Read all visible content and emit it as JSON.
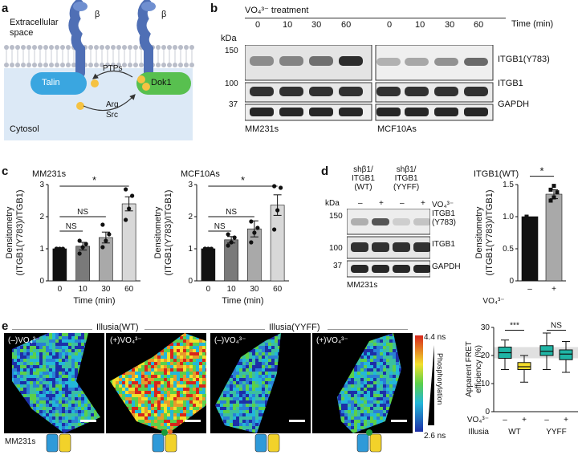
{
  "panels": {
    "a": "a",
    "b": "b",
    "c": "c",
    "d": "d",
    "e": "e"
  },
  "panel_a": {
    "extracellular": "Extracellular\nspace",
    "cytosol": "Cytosol",
    "beta1": "β",
    "beta2": "β",
    "talin": "Talin",
    "dok1": "Dok1",
    "ptps": "PTPs",
    "arg": "Arg",
    "src": "Src",
    "colors": {
      "talin": "#3aa6e0",
      "dok1": "#58c04f",
      "membrane": "#c9ccd6",
      "cytosol": "#dce9f6",
      "integrin": "#4f6fb5",
      "phospho": "#f5c242"
    }
  },
  "panel_b": {
    "treatment": "VO₄³⁻ treatment",
    "kda": "kDa",
    "time_label": "Time (min)",
    "times_left": [
      "0",
      "10",
      "30",
      "60"
    ],
    "times_right": [
      "0",
      "10",
      "30",
      "60"
    ],
    "markers": [
      "150",
      "100",
      "37"
    ],
    "bands": [
      "ITGB1(Y783)",
      "ITGB1",
      "GAPDH"
    ],
    "cell_left": "MM231s",
    "cell_right": "MCF10As"
  },
  "panel_c": {
    "ylabel": "Densitometry\n(ITGB1(Y783)/ITGB1)",
    "xlabel": "Time (min)",
    "ns": "NS",
    "star": "*"
  },
  "chart_data": [
    {
      "type": "bar",
      "title": "MM231s",
      "categories": [
        "0",
        "10",
        "30",
        "60"
      ],
      "values": [
        1.0,
        1.08,
        1.35,
        2.4
      ],
      "errors": [
        0,
        0.12,
        0.17,
        0.22
      ],
      "points": [
        [
          1,
          1,
          1,
          1
        ],
        [
          0.85,
          1.05,
          1.15,
          1.25
        ],
        [
          1.05,
          1.25,
          1.45,
          1.75
        ],
        [
          1.9,
          2.25,
          2.65,
          2.85
        ]
      ],
      "colors": [
        "#111111",
        "#7a7a7a",
        "#a9a9a9",
        "#d8d8d8"
      ],
      "xlabel": "Time (min)",
      "ylabel": "Densitometry (ITGB1(Y783)/ITGB1)",
      "ylim": [
        0,
        3
      ],
      "yticks": [
        "0",
        "1",
        "2",
        "3"
      ],
      "significance": [
        {
          "from": "0",
          "to": "10",
          "label": "NS"
        },
        {
          "from": "0",
          "to": "30",
          "label": "NS"
        },
        {
          "from": "0",
          "to": "60",
          "label": "*"
        }
      ]
    },
    {
      "type": "bar",
      "title": "MCF10As",
      "categories": [
        "0",
        "10",
        "30",
        "60"
      ],
      "values": [
        1.0,
        1.28,
        1.62,
        2.36
      ],
      "errors": [
        0,
        0.1,
        0.25,
        0.32
      ],
      "points": [
        [
          1,
          1,
          1,
          1
        ],
        [
          1.1,
          1.2,
          1.35,
          1.45
        ],
        [
          1.2,
          1.5,
          1.65,
          1.85
        ],
        [
          1.6,
          2.2,
          2.9,
          2.95
        ]
      ],
      "colors": [
        "#111111",
        "#7a7a7a",
        "#a9a9a9",
        "#d8d8d8"
      ],
      "xlabel": "Time (min)",
      "ylabel": "Densitometry (ITGB1(Y783)/ITGB1)",
      "ylim": [
        0,
        3
      ],
      "yticks": [
        "0",
        "1",
        "2",
        "3"
      ],
      "significance": [
        {
          "from": "0",
          "to": "10",
          "label": "NS"
        },
        {
          "from": "0",
          "to": "30",
          "label": "NS"
        },
        {
          "from": "0",
          "to": "60",
          "label": "*"
        }
      ]
    },
    {
      "type": "bar",
      "title": "ITGB1(WT)",
      "categories": [
        "–",
        "+"
      ],
      "values": [
        1.0,
        1.35
      ],
      "errors": [
        0,
        0.07
      ],
      "points": [
        [
          1
        ],
        [
          1.25,
          1.3,
          1.38,
          1.42,
          1.48
        ]
      ],
      "colors": [
        "#111111",
        "#a9a9a9"
      ],
      "xlabel": "VO₄³⁻",
      "ylabel": "Densitometry (ITGB1(Y783)/ITGB1)",
      "ylim": [
        0,
        1.5
      ],
      "yticks": [
        "0",
        "0.5",
        "1.0",
        "1.5"
      ],
      "significance": [
        {
          "from": "–",
          "to": "+",
          "label": "*"
        }
      ]
    },
    {
      "type": "box",
      "ylabel": "Apparent FRET efficiency (%)",
      "ylim": [
        0,
        30
      ],
      "yticks": [
        "0",
        "10",
        "20",
        "30"
      ],
      "categories": [
        "–",
        "+",
        "–",
        "+"
      ],
      "groups": [
        "WT",
        "YYFF"
      ],
      "boxes": [
        {
          "min": 15,
          "q1": 19,
          "median": 21,
          "q3": 23,
          "max": 25.5,
          "color": "#1fb5a5"
        },
        {
          "min": 10.5,
          "q1": 15,
          "median": 16,
          "q3": 17.5,
          "max": 20,
          "color": "#f2dc2a"
        },
        {
          "min": 15,
          "q1": 20,
          "median": 21.5,
          "q3": 23.5,
          "max": 28,
          "color": "#1fb5a5"
        },
        {
          "min": 14,
          "q1": 18.5,
          "median": 20.5,
          "q3": 22,
          "max": 25,
          "color": "#1fb5a5"
        }
      ],
      "band": [
        19,
        23
      ],
      "significance": [
        {
          "group": "WT",
          "label": "***"
        },
        {
          "group": "YYFF",
          "label": "NS"
        }
      ],
      "row_labels": [
        "VO₄³⁻",
        "Illusia"
      ]
    }
  ],
  "panel_d": {
    "kda": "kDa",
    "col1": "shβ1/\nITGB1\n(WT)",
    "col2": "shβ1/\nITGB1\n(YYFF)",
    "vo4": "VO₄³⁻",
    "lanes": [
      "–",
      "+",
      "–",
      "+"
    ],
    "markers": [
      "150",
      "100",
      "37"
    ],
    "bands": [
      "ITGB1\n(Y783)",
      "ITGB1",
      "GAPDH"
    ],
    "cell": "MM231s"
  },
  "panel_e": {
    "group1": "Illusia(WT)",
    "group2": "Illusia(YYFF)",
    "img_labels": [
      "(–)VO₄³⁻",
      "(+)VO₄³⁻",
      "(–)VO₄³⁻",
      "(+)VO₄³⁻"
    ],
    "scale_top": "4.4 ns",
    "scale_bottom": "2.6 ns",
    "phospho": "Phosphorylation",
    "cell": "MM231s",
    "groups": [
      "WT",
      "YYFF"
    ],
    "illusia": "Illusia",
    "vo4": "VO₄³⁻",
    "signs": [
      "–",
      "+",
      "–",
      "+"
    ]
  }
}
